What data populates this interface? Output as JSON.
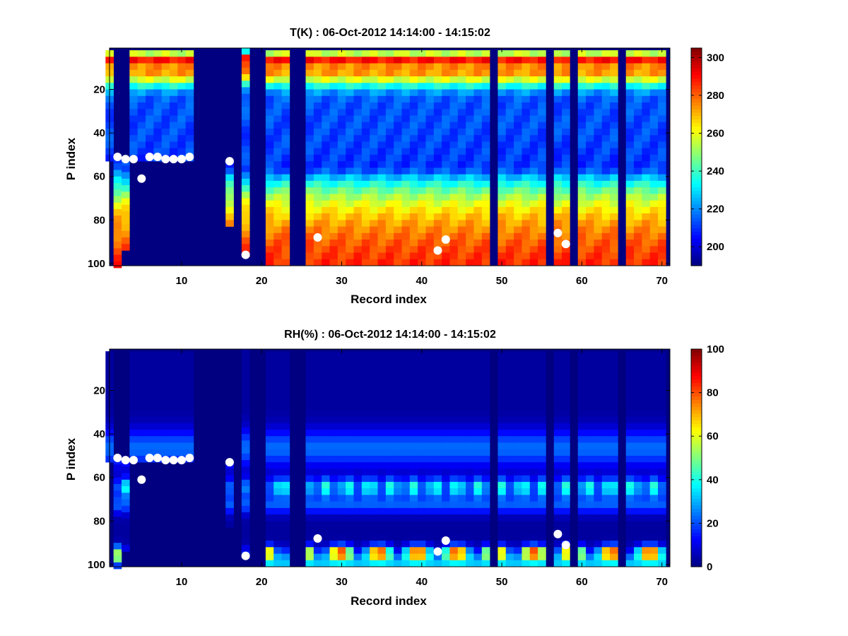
{
  "chart_data": [
    {
      "type": "heatmap",
      "title": "T(K) : 06-Oct-2012 14:14:00 - 14:15:02",
      "xlabel": "Record index",
      "ylabel": "P index",
      "xlim": [
        1,
        71
      ],
      "ylim": [
        1,
        101
      ],
      "xticks": [
        10,
        20,
        30,
        40,
        50,
        60,
        70
      ],
      "yticks": [
        20,
        40,
        60,
        80,
        100
      ],
      "colorbar": {
        "min": 190,
        "max": 305,
        "ticks": [
          200,
          220,
          240,
          260,
          280,
          300
        ],
        "colormap": "jet"
      },
      "missing_columns": [
        12,
        13,
        14,
        15,
        17,
        19,
        20,
        24,
        25,
        49,
        56,
        59,
        65
      ],
      "partial_columns": [
        {
          "record": 2,
          "valid_from": 51,
          "valid_to": 99
        },
        {
          "record": 3,
          "valid_from": 52,
          "valid_to": 92
        },
        {
          "record": 16,
          "valid_from": 53,
          "valid_to": 81
        },
        {
          "record": 18,
          "valid_from": 1,
          "valid_to": 96
        }
      ],
      "markers": [
        {
          "x": 2,
          "y": 51
        },
        {
          "x": 3,
          "y": 52
        },
        {
          "x": 4,
          "y": 52
        },
        {
          "x": 5,
          "y": 61
        },
        {
          "x": 6,
          "y": 51
        },
        {
          "x": 7,
          "y": 51
        },
        {
          "x": 8,
          "y": 52
        },
        {
          "x": 9,
          "y": 52
        },
        {
          "x": 10,
          "y": 52
        },
        {
          "x": 11,
          "y": 51
        },
        {
          "x": 16,
          "y": 53
        },
        {
          "x": 18,
          "y": 96
        },
        {
          "x": 27,
          "y": 88
        },
        {
          "x": 42,
          "y": 94
        },
        {
          "x": 43,
          "y": 89
        },
        {
          "x": 57,
          "y": 86
        },
        {
          "x": 58,
          "y": 91
        }
      ]
    },
    {
      "type": "heatmap",
      "title": "RH(%) : 06-Oct-2012 14:14:00 - 14:15:02",
      "xlabel": "Record index",
      "ylabel": "P index",
      "xlim": [
        1,
        71
      ],
      "ylim": [
        1,
        101
      ],
      "xticks": [
        10,
        20,
        30,
        40,
        50,
        60,
        70
      ],
      "yticks": [
        20,
        40,
        60,
        80,
        100
      ],
      "colorbar": {
        "min": 0,
        "max": 100,
        "ticks": [
          0,
          20,
          40,
          60,
          80,
          100
        ],
        "colormap": "jet"
      },
      "missing_columns": [
        12,
        13,
        14,
        15,
        17,
        19,
        20,
        24,
        25,
        49,
        56,
        59,
        65
      ],
      "markers": [
        {
          "x": 2,
          "y": 51
        },
        {
          "x": 3,
          "y": 52
        },
        {
          "x": 4,
          "y": 52
        },
        {
          "x": 5,
          "y": 61
        },
        {
          "x": 6,
          "y": 51
        },
        {
          "x": 7,
          "y": 51
        },
        {
          "x": 8,
          "y": 52
        },
        {
          "x": 9,
          "y": 52
        },
        {
          "x": 10,
          "y": 52
        },
        {
          "x": 11,
          "y": 51
        },
        {
          "x": 16,
          "y": 53
        },
        {
          "x": 18,
          "y": 96
        },
        {
          "x": 27,
          "y": 88
        },
        {
          "x": 42,
          "y": 94
        },
        {
          "x": 43,
          "y": 89
        },
        {
          "x": 57,
          "y": 86
        },
        {
          "x": 58,
          "y": 91
        }
      ]
    }
  ]
}
